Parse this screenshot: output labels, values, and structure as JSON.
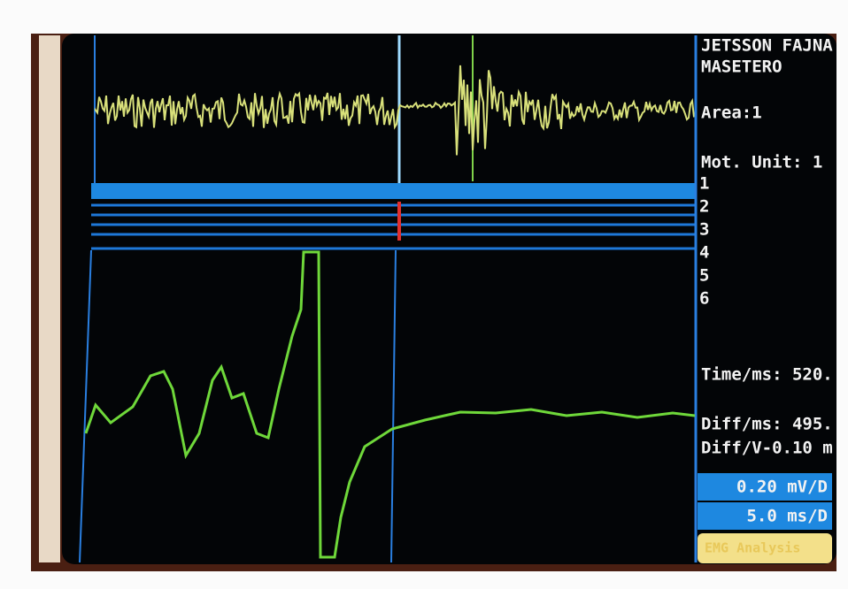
{
  "header": {
    "name": "JETSSON FAJNA",
    "muscle": "MASETERO"
  },
  "panel": {
    "area": "Area:1",
    "motor_unit": "Mot. Unit:  1",
    "units": [
      "1",
      "2",
      "3",
      "4",
      "5",
      "6"
    ],
    "time": "Time/ms: 520.",
    "diff_ms": "Diff/ms: 495.",
    "diff_v": "Diff/V-0.10 m",
    "gain": "0.20 mV/D",
    "sweep": "5.0 ms/D",
    "mode": "EMG Analysis"
  }
}
